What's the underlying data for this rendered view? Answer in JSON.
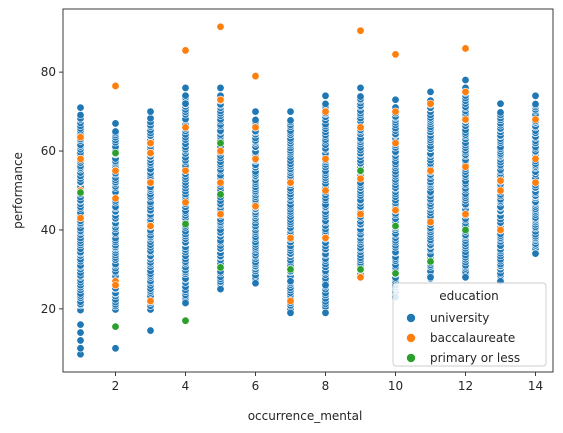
{
  "chart_data": {
    "type": "scatter",
    "title": "",
    "xlabel": "occurrence_mental",
    "ylabel": "performance",
    "xlim": [
      0.5,
      14.5
    ],
    "ylim": [
      4,
      96
    ],
    "xticks": [
      2,
      4,
      6,
      8,
      10,
      12,
      14
    ],
    "yticks": [
      20,
      40,
      60,
      80
    ],
    "grid": false,
    "legend": {
      "title": "education",
      "placement": "lower-right"
    },
    "series": [
      {
        "name": "university",
        "color": "#1f77b4",
        "columns": [
          {
            "x": 1,
            "min": 8.5,
            "max": 71,
            "extra": [
              8.5,
              10,
              12,
              14,
              16,
              71
            ]
          },
          {
            "x": 2,
            "min": 10,
            "max": 67,
            "extra": [
              10,
              67
            ]
          },
          {
            "x": 3,
            "min": 14.5,
            "max": 70,
            "extra": [
              14.5,
              70
            ]
          },
          {
            "x": 4,
            "min": 21.5,
            "max": 76,
            "extra": [
              21.5,
              72,
              76
            ]
          },
          {
            "x": 5,
            "min": 25,
            "max": 76,
            "extra": [
              25,
              74,
              76
            ]
          },
          {
            "x": 6,
            "min": 26.5,
            "max": 70,
            "extra": [
              26.5,
              70
            ]
          },
          {
            "x": 7,
            "min": 19,
            "max": 70,
            "extra": [
              19,
              27,
              70
            ]
          },
          {
            "x": 8,
            "min": 19,
            "max": 74,
            "extra": [
              19,
              26,
              74
            ]
          },
          {
            "x": 9,
            "min": 28,
            "max": 76,
            "extra": [
              28,
              76
            ]
          },
          {
            "x": 10,
            "min": 23,
            "max": 73,
            "extra": [
              23,
              73
            ]
          },
          {
            "x": 11,
            "min": 28,
            "max": 75,
            "extra": [
              28,
              75
            ]
          },
          {
            "x": 12,
            "min": 28,
            "max": 78,
            "extra": [
              28,
              78
            ]
          },
          {
            "x": 13,
            "min": 27,
            "max": 72,
            "extra": [
              27,
              72
            ]
          },
          {
            "x": 14,
            "min": 34,
            "max": 74,
            "extra": [
              34,
              74
            ]
          }
        ]
      },
      {
        "name": "baccalaureate",
        "color": "#ff7f0e",
        "points": [
          [
            1,
            63.5
          ],
          [
            1,
            58
          ],
          [
            1,
            50
          ],
          [
            1,
            43
          ],
          [
            2,
            76.5
          ],
          [
            2,
            27
          ],
          [
            2,
            26
          ],
          [
            2,
            55
          ],
          [
            2,
            48
          ],
          [
            3,
            62
          ],
          [
            3,
            59.5
          ],
          [
            3,
            52
          ],
          [
            3,
            22
          ],
          [
            3,
            41
          ],
          [
            4,
            85.5
          ],
          [
            4,
            66
          ],
          [
            4,
            55
          ],
          [
            4,
            47
          ],
          [
            5,
            91.5
          ],
          [
            5,
            73
          ],
          [
            5,
            60
          ],
          [
            5,
            52
          ],
          [
            5,
            44
          ],
          [
            6,
            79
          ],
          [
            6,
            66
          ],
          [
            6,
            58
          ],
          [
            6,
            46
          ],
          [
            7,
            22
          ],
          [
            7,
            52
          ],
          [
            7,
            38
          ],
          [
            8,
            70
          ],
          [
            8,
            58
          ],
          [
            8,
            50
          ],
          [
            8,
            38
          ],
          [
            9,
            90.5
          ],
          [
            9,
            66
          ],
          [
            9,
            53
          ],
          [
            9,
            44
          ],
          [
            9,
            28
          ],
          [
            10,
            84.5
          ],
          [
            10,
            70
          ],
          [
            10,
            62
          ],
          [
            10,
            45
          ],
          [
            11,
            72
          ],
          [
            11,
            55
          ],
          [
            11,
            42
          ],
          [
            12,
            86
          ],
          [
            12,
            75
          ],
          [
            12,
            68
          ],
          [
            12,
            56
          ],
          [
            12,
            44
          ],
          [
            13,
            52.5
          ],
          [
            13,
            40
          ],
          [
            13,
            50
          ],
          [
            14,
            68
          ],
          [
            14,
            58
          ],
          [
            14,
            52
          ]
        ]
      },
      {
        "name": "primary or less",
        "color": "#2ca02c",
        "points": [
          [
            1,
            49.5
          ],
          [
            2,
            59.5
          ],
          [
            2,
            15.5
          ],
          [
            4,
            41.5
          ],
          [
            4,
            17
          ],
          [
            5,
            62
          ],
          [
            5,
            30.5
          ],
          [
            5,
            49
          ],
          [
            7,
            30
          ],
          [
            9,
            30
          ],
          [
            9,
            55
          ],
          [
            10,
            29
          ],
          [
            10,
            41
          ],
          [
            11,
            32
          ],
          [
            12,
            40
          ]
        ]
      }
    ]
  }
}
